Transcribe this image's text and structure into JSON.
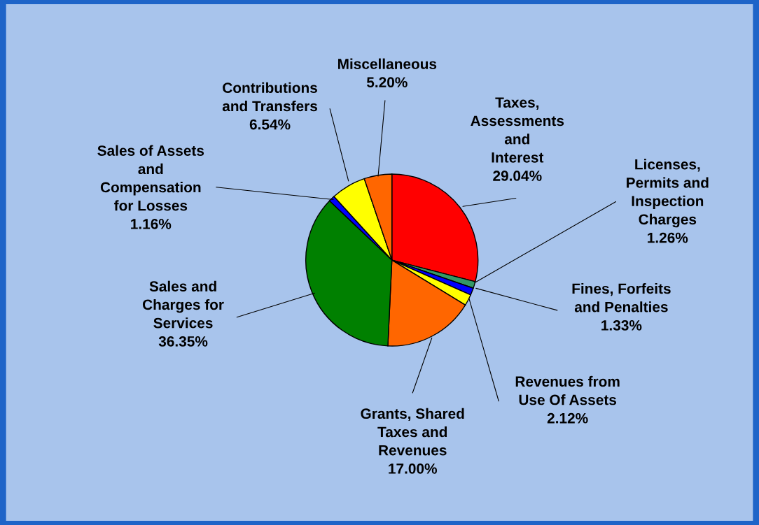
{
  "chart_data": {
    "type": "pie",
    "categories": [
      "Taxes,\nAssessments\nand\nInterest",
      "Licenses,\nPermits and\nInspection\nCharges",
      "Fines, Forfeits\nand Penalties",
      "Revenues from\nUse Of Assets",
      "Grants, Shared\nTaxes and\nRevenues",
      "Sales and\nCharges for\nServices",
      "Sales of Assets\nand\nCompensation\nfor Losses",
      "Contributions\nand Transfers",
      "Miscellaneous"
    ],
    "values": [
      29.04,
      1.26,
      1.33,
      2.12,
      17.0,
      36.35,
      1.16,
      6.54,
      5.2
    ],
    "colors": [
      "#ff0000",
      "#339966",
      "#0000ff",
      "#ffff00",
      "#ff6600",
      "#008000",
      "#0000ff",
      "#ffff00",
      "#ff6600"
    ],
    "value_labels": [
      "29.04%",
      "1.26%",
      "1.33%",
      "2.12%",
      "17.00%",
      "36.35%",
      "1.16%",
      "6.54%",
      "5.20%"
    ]
  }
}
